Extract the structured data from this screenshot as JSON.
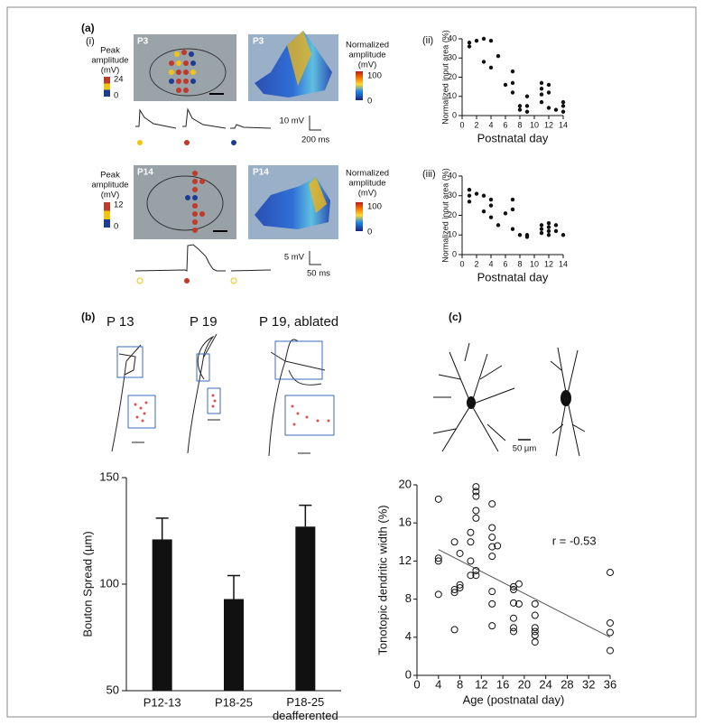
{
  "panel_a": {
    "label": "(a)",
    "sub": "(i)",
    "rows": [
      {
        "age": "P3",
        "colorbar_title": [
          "Peak",
          "amplitude",
          "(mV)"
        ],
        "colorbar_ticks": [
          24,
          0
        ],
        "scale_v": "10 mV",
        "scale_t": "200 ms"
      },
      {
        "age": "P14",
        "colorbar_title": [
          "Peak",
          "amplitude",
          "(mV)"
        ],
        "colorbar_ticks": [
          12,
          0
        ],
        "scale_v": "5 mV",
        "scale_t": "50 ms"
      }
    ],
    "norm_title": [
      "Normalized",
      "amplitude",
      "(mV)"
    ],
    "norm_ticks": [
      100,
      0
    ]
  },
  "panel_b": {
    "label": "(b)",
    "cells": [
      "P 13",
      "P 19",
      "P 19, ablated"
    ]
  },
  "panel_c": {
    "label": "(c)",
    "scale": "50 µm"
  },
  "chart_data": [
    {
      "type": "scatter",
      "label": "(ii)",
      "ylabel": "Normalized input area (%)",
      "xlabel": "Postnatal day",
      "marker": "filled",
      "color": "#111111",
      "x": [
        1,
        1,
        2,
        3,
        3,
        4,
        4,
        5,
        6,
        7,
        7,
        7,
        8,
        8,
        9,
        9,
        9,
        11,
        11,
        11,
        11,
        12,
        12,
        12,
        13,
        14,
        14,
        14
      ],
      "values": [
        38,
        36,
        39,
        40,
        28,
        39,
        25,
        31,
        16,
        23,
        17,
        12,
        3,
        5,
        10,
        5,
        2,
        17,
        14,
        11,
        7,
        16,
        12,
        4,
        3,
        5,
        7,
        2
      ],
      "xlim": [
        0,
        14
      ],
      "xticks": [
        0,
        2,
        4,
        6,
        8,
        10,
        12,
        14
      ],
      "ylim": [
        0,
        40
      ],
      "yticks": [
        0,
        10,
        20,
        30,
        40
      ]
    },
    {
      "type": "scatter",
      "label": "(iii)",
      "ylabel": "Normalized input area (%)",
      "xlabel": "Postnatal day",
      "marker": "filled",
      "color": "#111111",
      "x": [
        1,
        1,
        1,
        2,
        3,
        3,
        4,
        4,
        4,
        5,
        6,
        7,
        7,
        7,
        8,
        9,
        9,
        11,
        11,
        11,
        12,
        12,
        12,
        12,
        13,
        13,
        14
      ],
      "values": [
        33,
        30,
        27,
        31,
        30,
        22,
        28,
        25,
        19,
        15,
        21,
        28,
        23,
        13,
        10,
        10,
        9,
        15,
        13,
        11,
        16,
        14,
        12,
        10,
        15,
        12,
        10
      ],
      "xlim": [
        0,
        14
      ],
      "xticks": [
        0,
        2,
        4,
        6,
        8,
        10,
        12,
        14
      ],
      "ylim": [
        0,
        40
      ],
      "yticks": [
        0,
        10,
        20,
        30,
        40
      ]
    },
    {
      "type": "bar",
      "ylabel": "Bouton Spread (µm)",
      "color": "#111111",
      "categories": [
        "P12-13",
        "P18-25",
        "P18-25 deafferented"
      ],
      "values": [
        121,
        93,
        127
      ],
      "errors": [
        10,
        11,
        10
      ],
      "ylim": [
        50,
        150
      ],
      "yticks": [
        50,
        100,
        150
      ]
    },
    {
      "type": "scatter",
      "ylabel": "Tonotopic dendritic width (%)",
      "xlabel": "Age (postnatal day)",
      "marker": "open",
      "color": "#111111",
      "annotation": "r = -0.53",
      "x": [
        4,
        4,
        4,
        4,
        7,
        7,
        7,
        7,
        8,
        8,
        8,
        10,
        10,
        10,
        10,
        11,
        11,
        11,
        11,
        11,
        11,
        11,
        14,
        14,
        14,
        14,
        14,
        14,
        14,
        14,
        15,
        18,
        18,
        18,
        18,
        18,
        18,
        19,
        19,
        22,
        22,
        22,
        22,
        22,
        22,
        36,
        36,
        36,
        36
      ],
      "values": [
        18.5,
        12.3,
        12,
        8.5,
        14,
        9,
        8.7,
        4.8,
        12.8,
        9.5,
        9.2,
        15,
        14,
        12,
        10.5,
        19.8,
        19.3,
        18.8,
        17.3,
        16.5,
        11,
        10.5,
        18,
        15.5,
        14.5,
        13.5,
        12.5,
        8.8,
        7.5,
        5.2,
        13.6,
        9.3,
        9,
        7.6,
        6,
        5,
        4.6,
        9.6,
        7.5,
        7.5,
        6.3,
        5,
        4.6,
        4.2,
        3.5,
        10.8,
        5.5,
        4.5,
        2.6
      ],
      "trendline": {
        "x": [
          4,
          36
        ],
        "y": [
          13.2,
          4
        ]
      },
      "xlim": [
        0,
        36
      ],
      "xticks": [
        0,
        4,
        8,
        12,
        16,
        20,
        24,
        28,
        32,
        36
      ],
      "ylim": [
        0,
        20
      ],
      "yticks": [
        0,
        4,
        8,
        12,
        16,
        20
      ]
    }
  ]
}
